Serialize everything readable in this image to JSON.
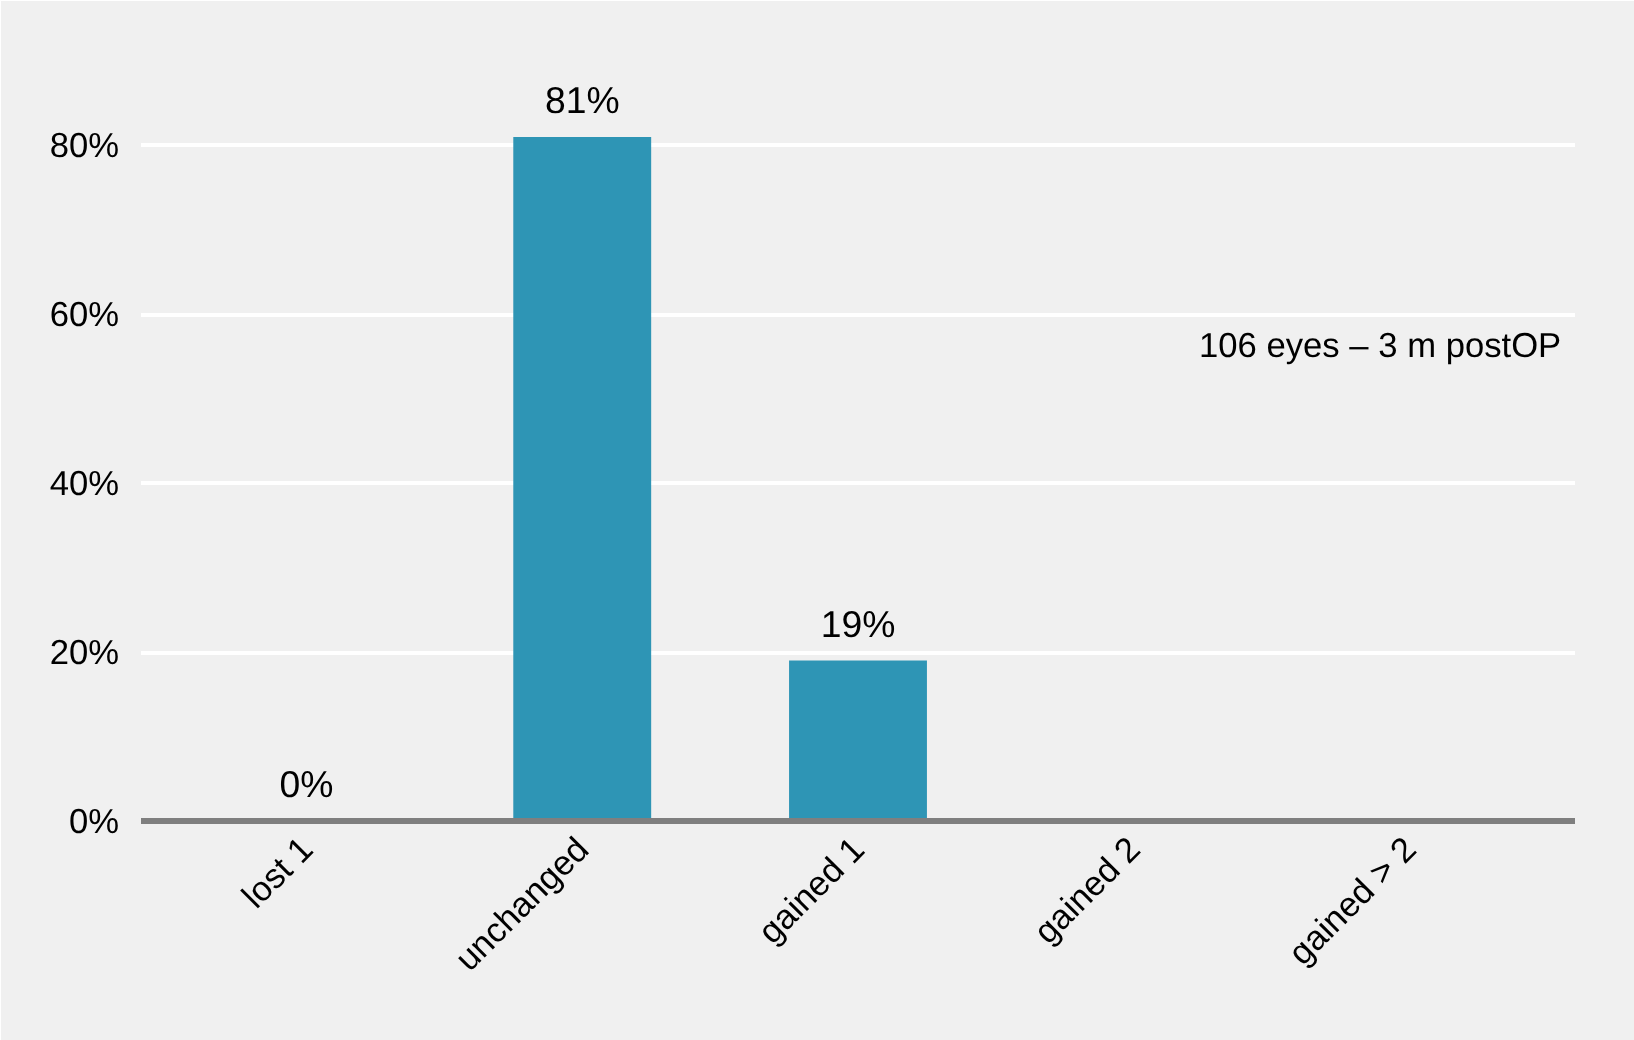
{
  "chart_data": {
    "type": "bar",
    "categories": [
      "lost 1",
      "unchanged",
      "gained 1",
      "gained 2",
      "gained > 2"
    ],
    "values": [
      0,
      81,
      19,
      0,
      0
    ],
    "color": "#2e95b5",
    "value_labels": [
      "0%",
      "81%",
      "19%",
      null,
      null
    ],
    "ylim": [
      0,
      90
    ],
    "yticks": [
      {
        "value": 0,
        "label": "0%"
      },
      {
        "value": 20,
        "label": "20%"
      },
      {
        "value": 40,
        "label": "40%"
      },
      {
        "value": 60,
        "label": "60%"
      },
      {
        "value": 80,
        "label": "80%"
      }
    ],
    "grid": "y",
    "annotations": [
      "106 eyes – 3 m postOP"
    ]
  }
}
